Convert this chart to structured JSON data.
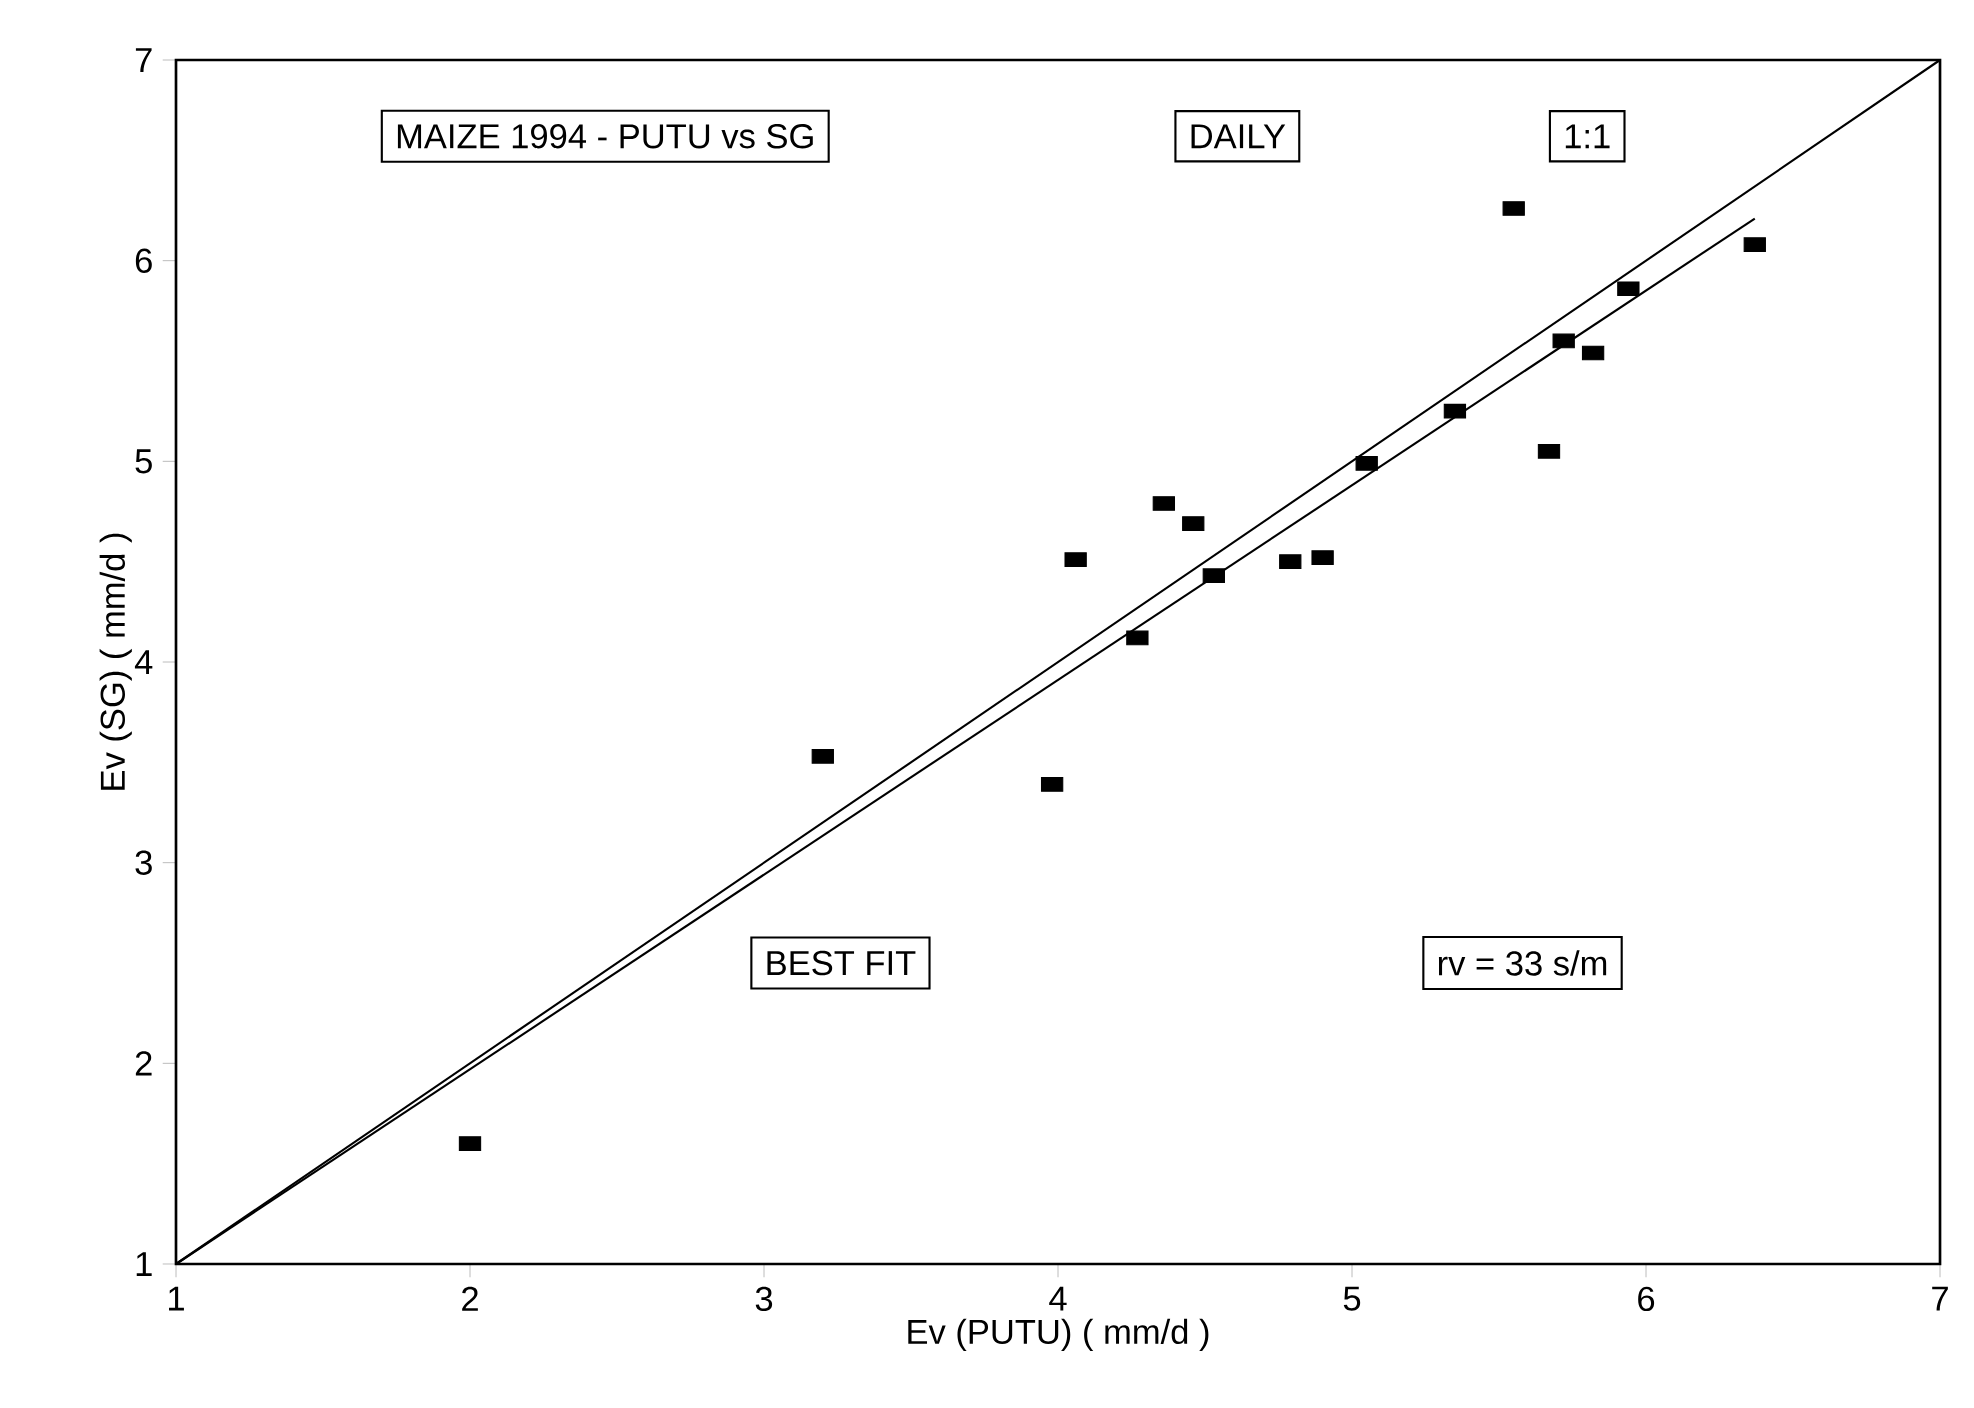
{
  "chart_data": {
    "type": "scatter",
    "title": "MAIZE 1994 - PUTU vs SG",
    "subtitle": "DAILY",
    "xlabel": "Ev (PUTU) ( mm/d )",
    "ylabel": "Ev (SG) ( mm/d )",
    "annotations": [
      "1:1",
      "BEST FIT",
      "rv = 33 s/m"
    ],
    "xlim": [
      1,
      7
    ],
    "ylim": [
      1,
      7
    ],
    "xticks": [
      1,
      2,
      3,
      4,
      5,
      6,
      7
    ],
    "yticks": [
      1,
      2,
      3,
      4,
      5,
      6,
      7
    ],
    "grid": false,
    "series": [
      {
        "type": "line",
        "color": "#000000",
        "marker": "none",
        "line_style": "solid",
        "x": [
          1,
          7
        ],
        "values": [
          1,
          7
        ]
      },
      {
        "type": "line",
        "color": "#000000",
        "marker": "none",
        "line_style": "solid",
        "x": [
          1,
          6.37
        ],
        "values": [
          1,
          6.21
        ]
      },
      {
        "color": "#000000",
        "marker": "square",
        "x": [
          2.0,
          3.2,
          3.98,
          4.06,
          4.27,
          4.36,
          4.46,
          4.53,
          4.79,
          4.9,
          5.05,
          5.35,
          5.55,
          5.67,
          5.72,
          5.82,
          5.94,
          6.37
        ],
        "values": [
          1.6,
          3.53,
          3.39,
          4.51,
          4.12,
          4.79,
          4.69,
          4.43,
          4.5,
          4.52,
          4.99,
          5.25,
          6.26,
          5.05,
          5.6,
          5.54,
          5.86,
          6.08
        ]
      }
    ]
  }
}
